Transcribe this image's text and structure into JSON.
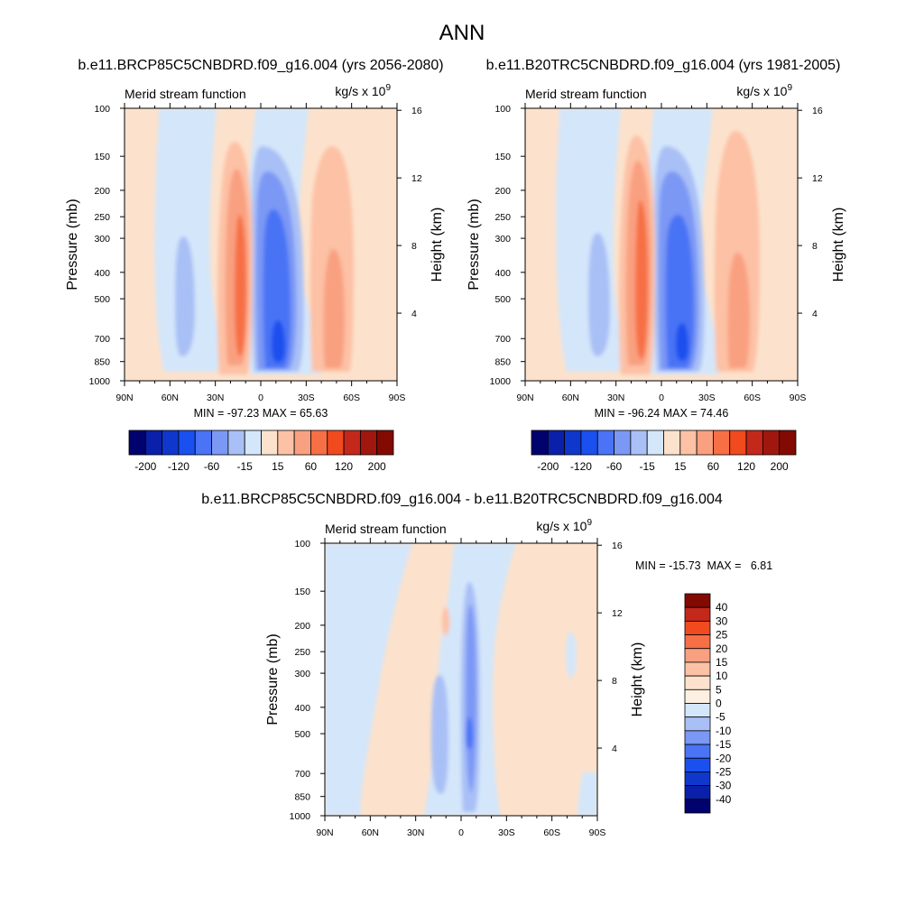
{
  "figure_title": "ANN",
  "diff_title": "b.e11.BRCP85C5CNBDRD.f09_g16.004 - b.e11.B20TRC5CNBDRD.f09_g16.004",
  "panel_label": "Merid stream function",
  "units_text": "kg/s x 10",
  "units_exponent": "9",
  "y_axis_label": "Pressure (mb)",
  "right_axis_label": "Height (km)",
  "chart_data": [
    {
      "type": "contour",
      "title": "b.e11.BRCP85C5CNBDRD.f09_g16.004 (yrs 2056-2080)",
      "subtitle": "Merid stream function",
      "units": "kg/s x 10^9",
      "x_ticks": [
        "90N",
        "60N",
        "30N",
        "0",
        "30S",
        "60S",
        "90S"
      ],
      "x_range": [
        90,
        -90
      ],
      "y_scale": "log",
      "y_ticks": [
        100,
        150,
        200,
        250,
        300,
        400,
        500,
        700,
        850,
        1000
      ],
      "y_range": [
        1000,
        100
      ],
      "height_ticks": [
        4,
        8,
        12,
        16
      ],
      "stats_text": "MIN = -97.23  MAX =  65.63",
      "min": -97.23,
      "max": 65.63,
      "colorbar": {
        "orientation": "horizontal",
        "levels": [
          -200,
          -160,
          -120,
          -90,
          -60,
          -30,
          -15,
          0,
          15,
          30,
          60,
          90,
          120,
          160,
          200
        ],
        "labels": [
          "-200",
          "-120",
          "-60",
          "-15",
          "15",
          "60",
          "120",
          "200"
        ],
        "colors": [
          "#02026e",
          "#0a1faa",
          "#0f37cc",
          "#1a50ee",
          "#4a73f5",
          "#7b98f5",
          "#a9c0f6",
          "#d4e6fa",
          "#fce2cc",
          "#fdc1a5",
          "#f9a080",
          "#f76f45",
          "#f04a1e",
          "#c4281a",
          "#a0170f",
          "#830a03"
        ]
      },
      "cells": [
        {
          "lat": 45,
          "p_top": 300,
          "p_bot": 900,
          "value": -22
        },
        {
          "lat": 15,
          "p_top": 160,
          "p_bot": 900,
          "value": 42
        },
        {
          "lat": -12,
          "p_top": 150,
          "p_bot": 900,
          "value": -80
        },
        {
          "lat": -47,
          "p_top": 160,
          "p_bot": 900,
          "value": 35
        }
      ]
    },
    {
      "type": "contour",
      "title": "b.e11.B20TRC5CNBDRD.f09_g16.004 (yrs 1981-2005)",
      "subtitle": "Merid stream function",
      "units": "kg/s x 10^9",
      "x_ticks": [
        "90N",
        "60N",
        "30N",
        "0",
        "30S",
        "60S",
        "90S"
      ],
      "x_range": [
        90,
        -90
      ],
      "y_scale": "log",
      "y_ticks": [
        100,
        150,
        200,
        250,
        300,
        400,
        500,
        700,
        850,
        1000
      ],
      "y_range": [
        1000,
        100
      ],
      "height_ticks": [
        4,
        8,
        12,
        16
      ],
      "stats_text": "MIN = -96.24  MAX =  74.46",
      "min": -96.24,
      "max": 74.46,
      "colorbar": {
        "orientation": "horizontal",
        "levels": [
          -200,
          -160,
          -120,
          -90,
          -60,
          -30,
          -15,
          0,
          15,
          30,
          60,
          90,
          120,
          160,
          200
        ],
        "labels": [
          "-200",
          "-120",
          "-60",
          "-15",
          "15",
          "60",
          "120",
          "200"
        ],
        "colors": [
          "#02026e",
          "#0a1faa",
          "#0f37cc",
          "#1a50ee",
          "#4a73f5",
          "#7b98f5",
          "#a9c0f6",
          "#d4e6fa",
          "#fce2cc",
          "#fdc1a5",
          "#f9a080",
          "#f76f45",
          "#f04a1e",
          "#c4281a",
          "#a0170f",
          "#830a03"
        ]
      },
      "cells": [
        {
          "lat": 45,
          "p_top": 300,
          "p_bot": 900,
          "value": -22
        },
        {
          "lat": 16,
          "p_top": 150,
          "p_bot": 900,
          "value": 50
        },
        {
          "lat": -12,
          "p_top": 150,
          "p_bot": 900,
          "value": -78
        },
        {
          "lat": -47,
          "p_top": 150,
          "p_bot": 900,
          "value": 40
        }
      ]
    },
    {
      "type": "contour",
      "title": "b.e11.BRCP85C5CNBDRD.f09_g16.004 - b.e11.B20TRC5CNBDRD.f09_g16.004",
      "subtitle": "Merid stream function",
      "units": "kg/s x 10^9",
      "x_ticks": [
        "90N",
        "60N",
        "30N",
        "0",
        "30S",
        "60S",
        "90S"
      ],
      "x_range": [
        90,
        -90
      ],
      "y_scale": "log",
      "y_ticks": [
        100,
        150,
        200,
        250,
        300,
        400,
        500,
        700,
        850,
        1000
      ],
      "y_range": [
        1000,
        100
      ],
      "height_ticks": [
        4,
        8,
        12,
        16
      ],
      "stats_text": "MIN = -15.73  MAX =   6.81",
      "min": -15.73,
      "max": 6.81,
      "colorbar": {
        "orientation": "vertical",
        "levels": [
          -40,
          -30,
          -25,
          -20,
          -15,
          -10,
          -5,
          0,
          5,
          10,
          15,
          20,
          25,
          30,
          40
        ],
        "labels": [
          "40",
          "30",
          "25",
          "20",
          "15",
          "10",
          "5",
          "0",
          "-5",
          "-10",
          "-15",
          "-20",
          "-25",
          "-30",
          "-40"
        ],
        "colors": [
          "#830a03",
          "#c4281a",
          "#f04a1e",
          "#f76f45",
          "#f9a080",
          "#fdc1a5",
          "#fce2cc",
          "#fdf0e2",
          "#d4e6fa",
          "#a9c0f6",
          "#7b98f5",
          "#4a73f5",
          "#1a50ee",
          "#0f37cc",
          "#0a1faa",
          "#02026e"
        ]
      },
      "cells": [
        {
          "lat": 15,
          "p_top": 300,
          "p_bot": 1000,
          "value": -7
        },
        {
          "lat": -3,
          "p_top": 180,
          "p_bot": 1000,
          "value": -10
        },
        {
          "lat": -3,
          "p_top": 450,
          "p_bot": 560,
          "value": -14
        },
        {
          "lat": 16,
          "p_top": 175,
          "p_bot": 215,
          "value": 6
        }
      ]
    }
  ]
}
